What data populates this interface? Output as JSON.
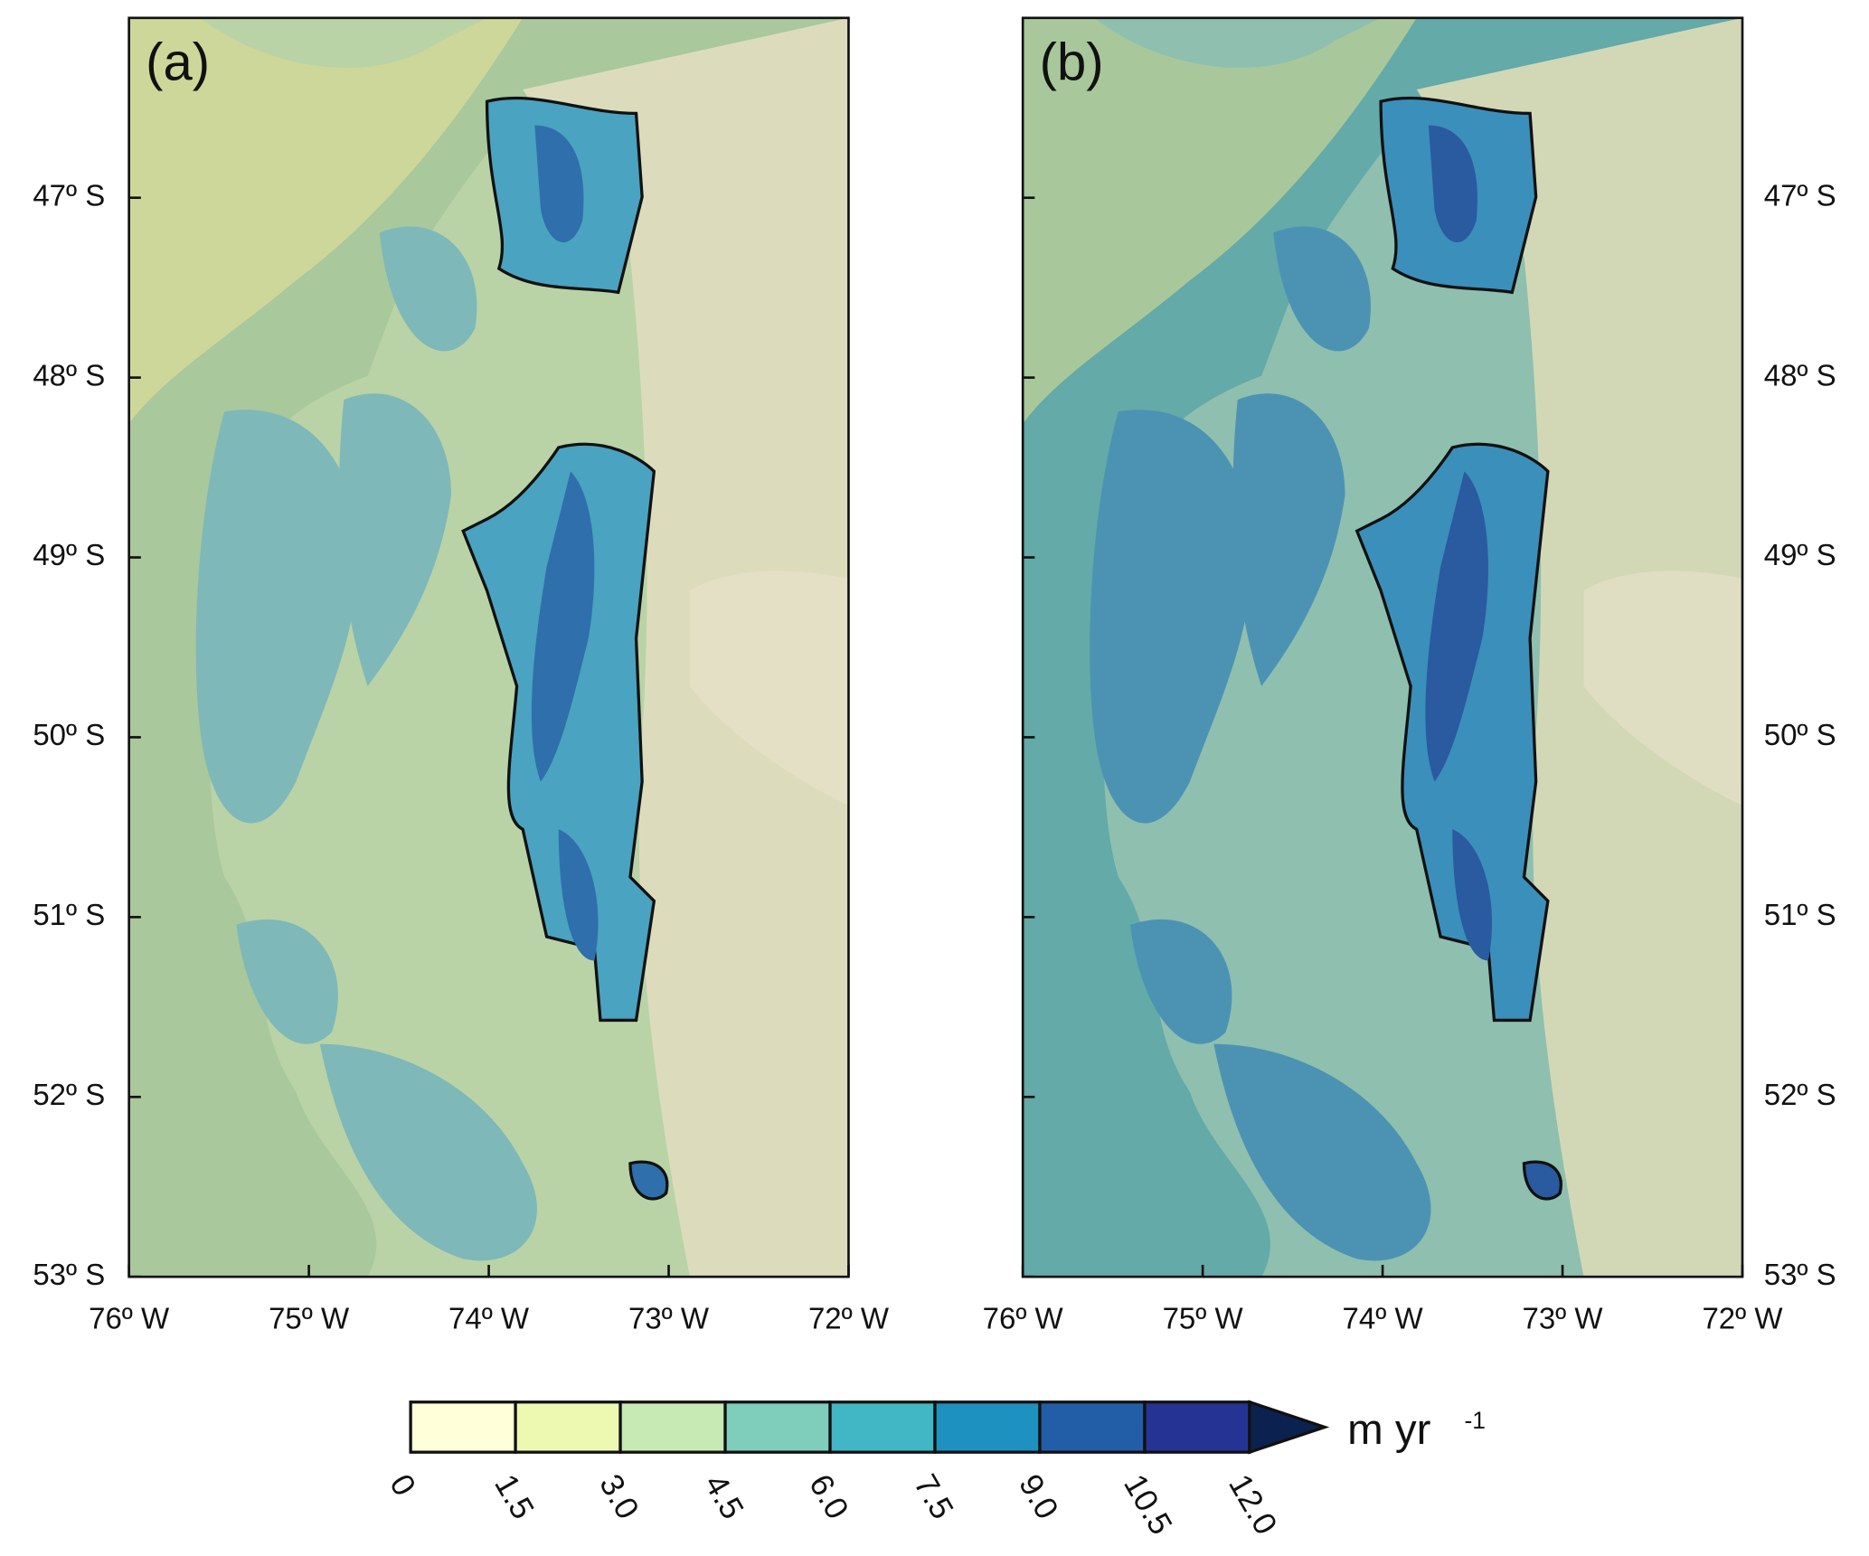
{
  "panels": [
    {
      "label": "(a)"
    },
    {
      "label": "(b)"
    }
  ],
  "lat_range": [
    -53,
    -46
  ],
  "lon_range": [
    -76,
    -72
  ],
  "lat_ticks": [
    {
      "value": -47,
      "label": "47º S"
    },
    {
      "value": -48,
      "label": "48º S"
    },
    {
      "value": -49,
      "label": "49º S"
    },
    {
      "value": -50,
      "label": "50º S"
    },
    {
      "value": -51,
      "label": "51º S"
    },
    {
      "value": -52,
      "label": "52º S"
    },
    {
      "value": -53,
      "label": "53º S"
    }
  ],
  "lon_ticks": [
    {
      "value": -76,
      "label": "76º W"
    },
    {
      "value": -75,
      "label": "75º W"
    },
    {
      "value": -74,
      "label": "74º W"
    },
    {
      "value": -73,
      "label": "73º W"
    },
    {
      "value": -72,
      "label": "72º W"
    }
  ],
  "colorbar": {
    "range": [
      0,
      12
    ],
    "ticks": [
      0,
      {
        "value": 1.5,
        "label": "1.5"
      },
      {
        "value": 3,
        "label": "3.0"
      },
      {
        "value": 4.5,
        "label": "4.5"
      },
      {
        "value": 6,
        "label": "6.0"
      },
      {
        "value": 7.5,
        "label": "7.5"
      },
      {
        "value": 9,
        "label": "9.0"
      },
      {
        "value": 10.5,
        "label": "10.5"
      },
      {
        "value": 12,
        "label": "12.0"
      }
    ],
    "colors": [
      "#ffffd9",
      "#edf8b1",
      "#c7e9b4",
      "#7fcdbb",
      "#41b6c4",
      "#1d91c0",
      "#225ea8",
      "#253494"
    ],
    "extend_color": "#0b2150",
    "unit": "m yr",
    "unit_exponent": "-1"
  }
}
